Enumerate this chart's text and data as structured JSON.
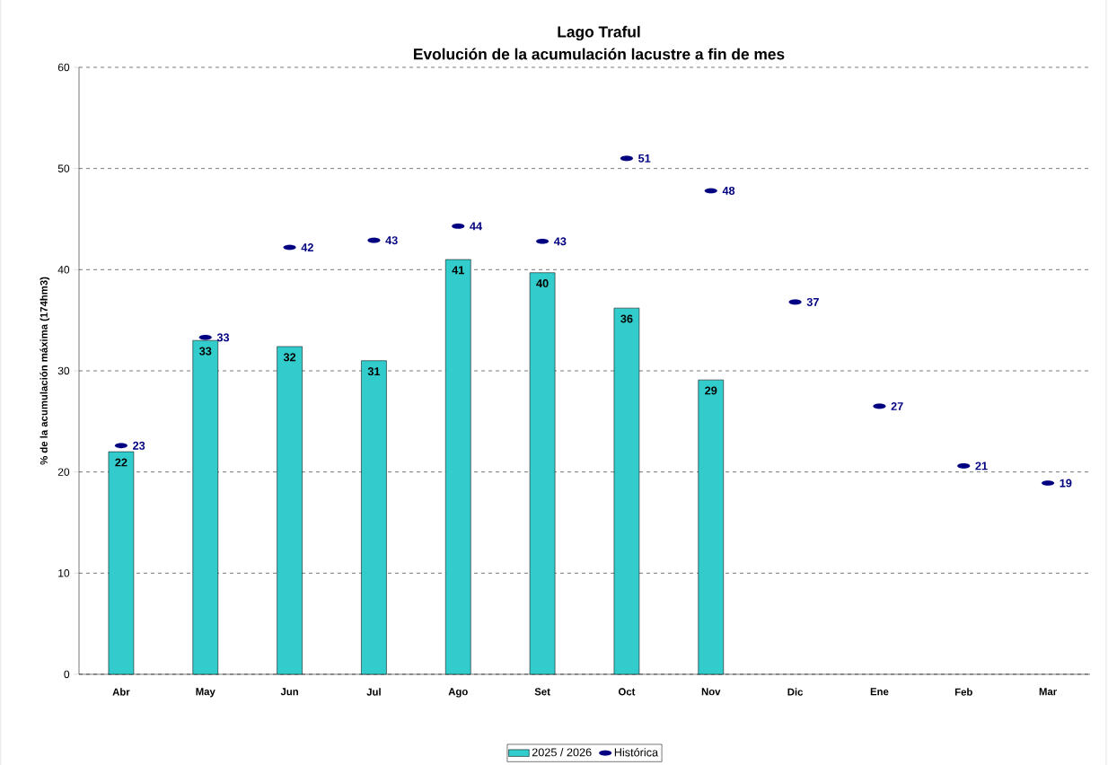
{
  "chart_data": {
    "type": "bar",
    "title": "Lago Traful",
    "subtitle": "Evolución de la acumulación lacustre a fin de mes",
    "ylabel": "% de la acumulación máxima (174hm3)",
    "categories": [
      "Abr",
      "May",
      "Jun",
      "Jul",
      "Ago",
      "Set",
      "Oct",
      "Nov",
      "Dic",
      "Ene",
      "Feb",
      "Mar"
    ],
    "series": [
      {
        "name": "2025 / 2026",
        "color": "#33cccc",
        "values": [
          22.0,
          33.0,
          32.4,
          31.0,
          41.0,
          39.7,
          36.2,
          29.1,
          null,
          null,
          null,
          null
        ],
        "value_labels": [
          "22",
          "33",
          "32",
          "31",
          "41",
          "40",
          "36",
          "29",
          null,
          null,
          null,
          null
        ]
      },
      {
        "name": "Histórica",
        "type": "scatter",
        "color": "#000080",
        "values": [
          22.6,
          33.3,
          42.2,
          42.9,
          44.3,
          42.8,
          51.0,
          47.8,
          36.8,
          26.5,
          20.6,
          18.9
        ],
        "value_labels": [
          "23",
          "33",
          "42",
          "43",
          "44",
          "43",
          "51",
          "48",
          "37",
          "27",
          "21",
          "19"
        ]
      }
    ],
    "ylim": [
      0,
      60
    ],
    "yticks": [
      0,
      10,
      20,
      30,
      40,
      50,
      60
    ],
    "grid": "y",
    "legend": "bottom"
  }
}
